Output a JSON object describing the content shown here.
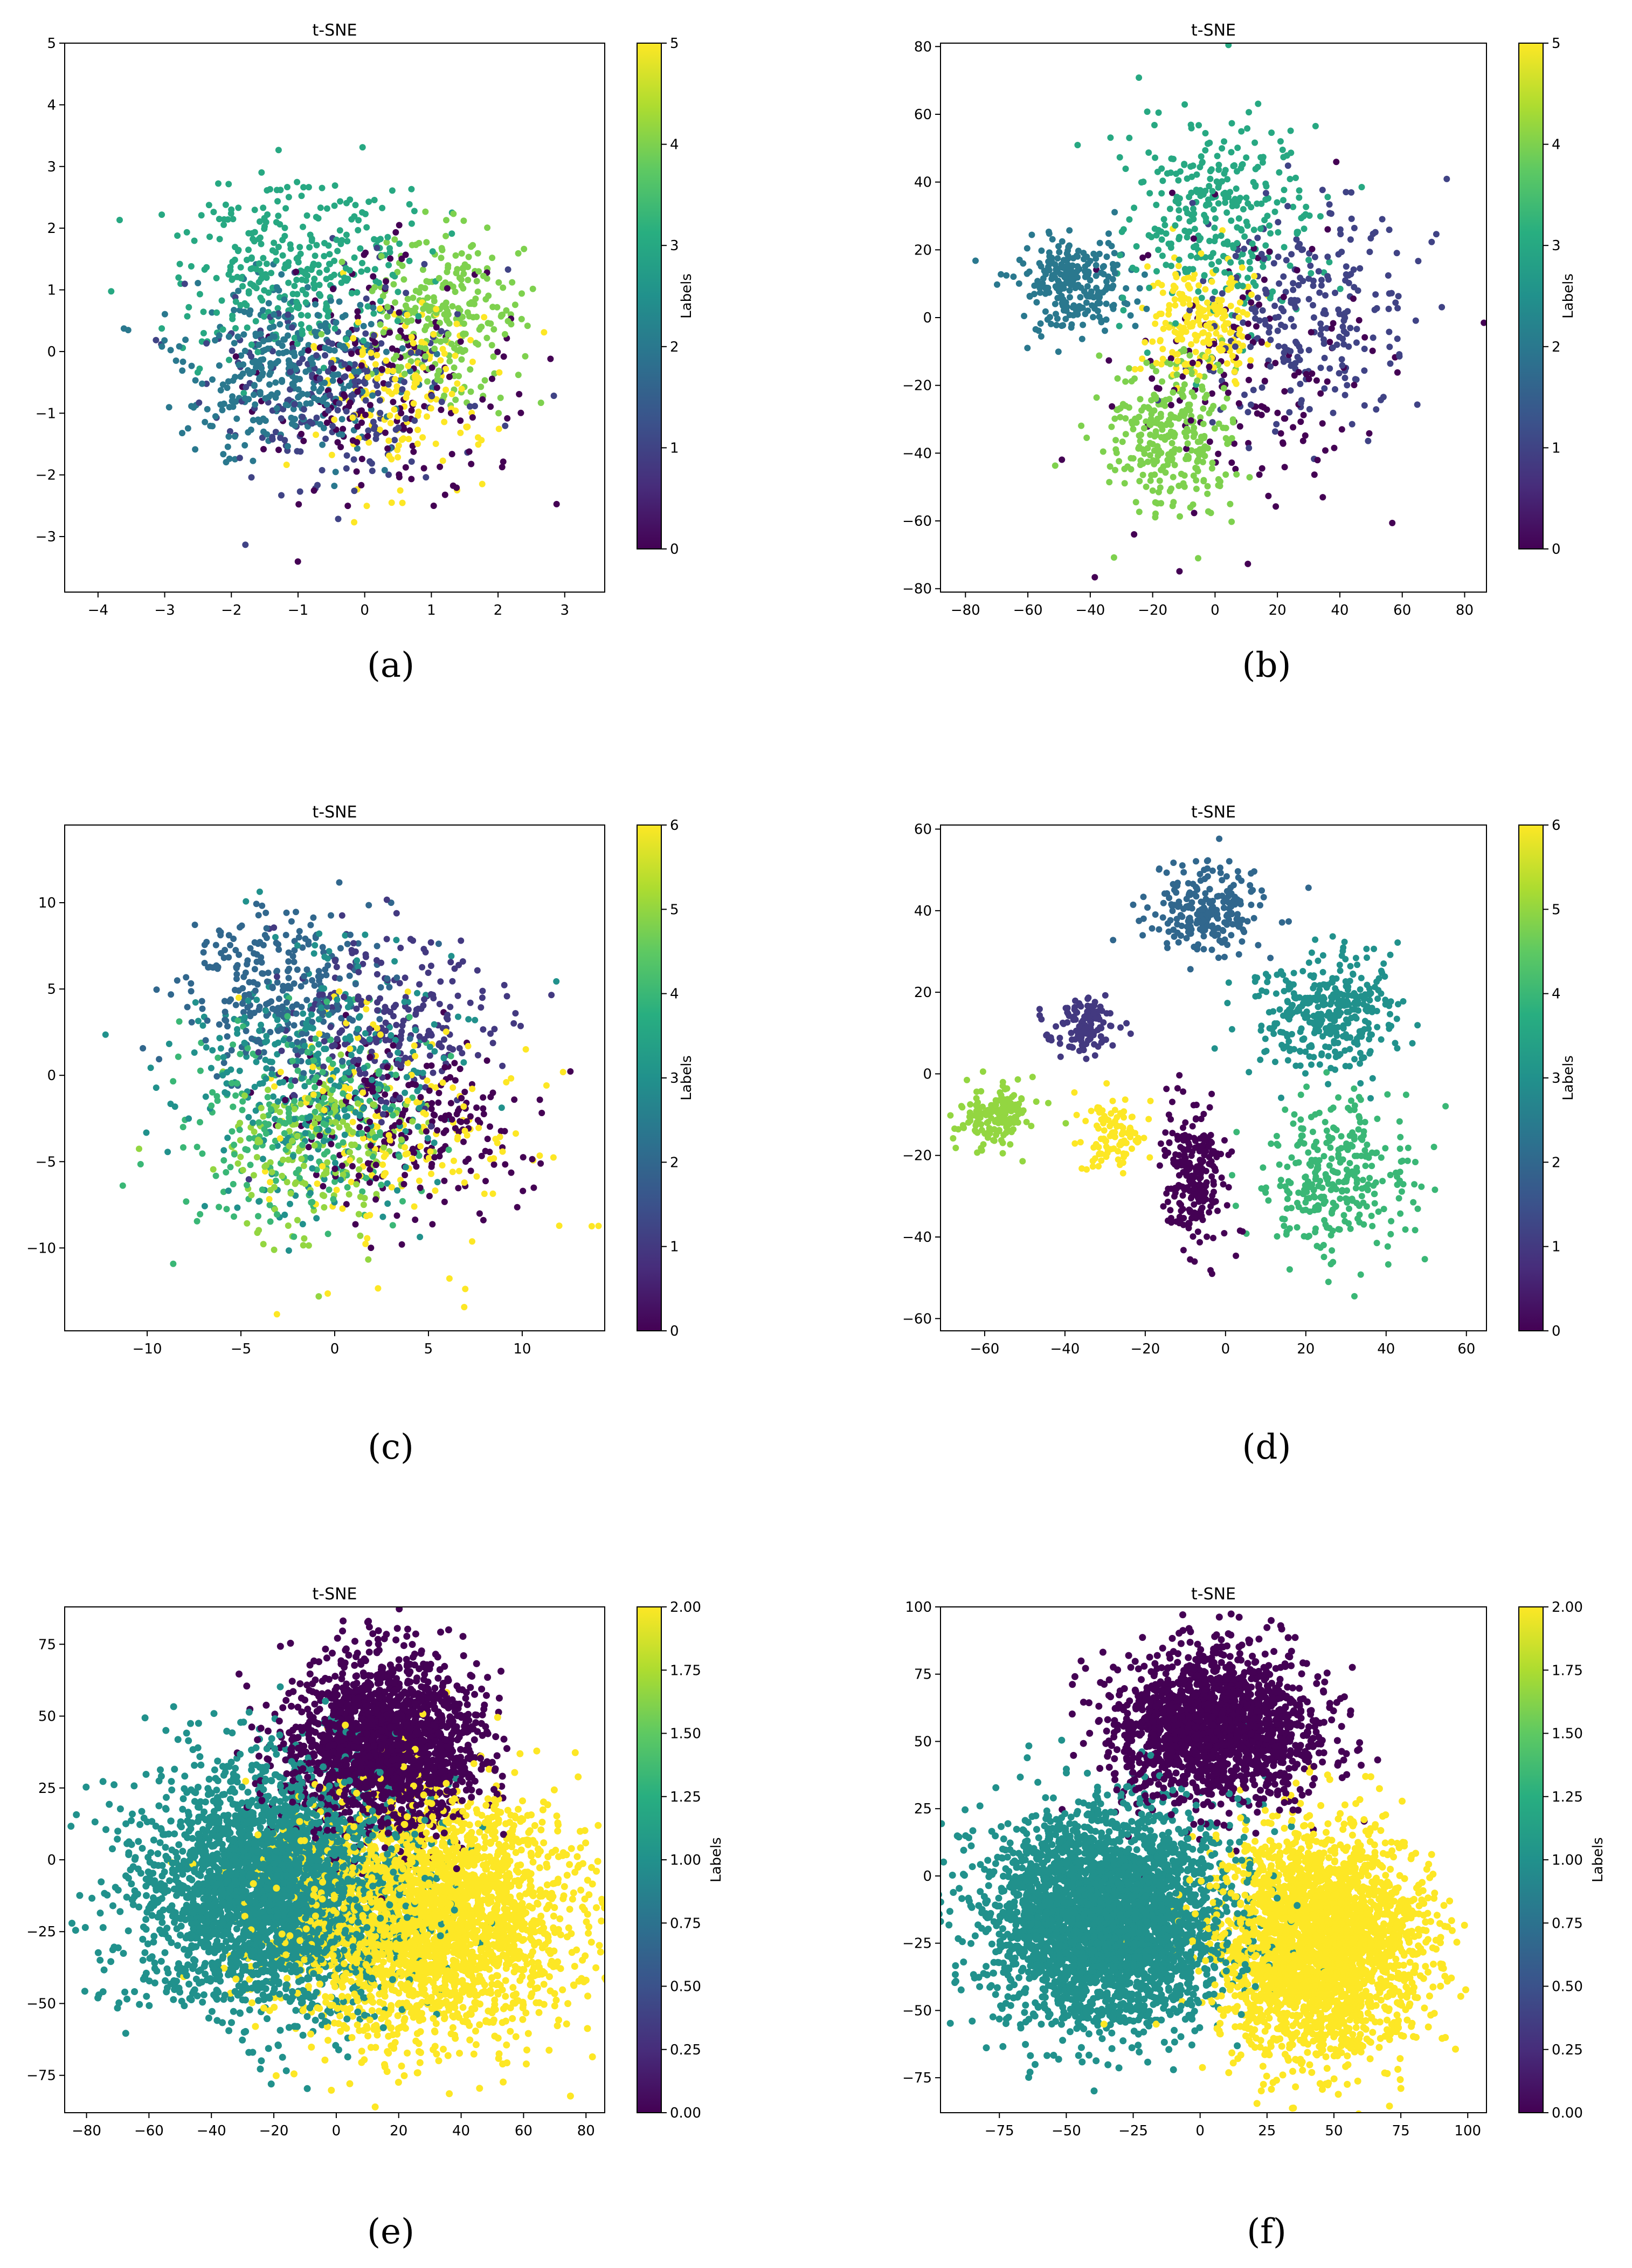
{
  "chart_data": [
    {
      "id": "a",
      "caption": "(a)",
      "type": "scatter",
      "title": "t-SNE",
      "xlabel": "",
      "ylabel": "",
      "xlim": [
        -4.5,
        3.6
      ],
      "ylim": [
        -3.9,
        5.0
      ],
      "xticks": [
        -4,
        -3,
        -2,
        -1,
        0,
        1,
        2,
        3
      ],
      "xtick_labels": [
        "−4",
        "−3",
        "−2",
        "−1",
        "0",
        "1",
        "2",
        "3"
      ],
      "yticks": [
        -3,
        -2,
        -1,
        0,
        1,
        2,
        3,
        4,
        5
      ],
      "ytick_labels": [
        "−3",
        "−2",
        "−1",
        "0",
        "1",
        "2",
        "3",
        "4",
        "5"
      ],
      "colorbar": {
        "label": "Labels",
        "min": 0,
        "max": 5,
        "ticks": [
          0,
          1,
          2,
          3,
          4,
          5
        ],
        "tick_labels": [
          "0",
          "1",
          "2",
          "3",
          "4",
          "5"
        ]
      },
      "points_estimated": 1500,
      "series": [
        {
          "label": 0,
          "center": [
            0.3,
            -0.5
          ],
          "spread": [
            1.3,
            1.3
          ],
          "count": 180
        },
        {
          "label": 1,
          "center": [
            -0.4,
            -0.6
          ],
          "spread": [
            1.2,
            1.1
          ],
          "count": 230
        },
        {
          "label": 2,
          "center": [
            -1.2,
            -0.3
          ],
          "spread": [
            1.1,
            1.0
          ],
          "count": 340
        },
        {
          "label": 3,
          "center": [
            -1.0,
            1.4
          ],
          "spread": [
            1.2,
            0.9
          ],
          "count": 320
        },
        {
          "label": 4,
          "center": [
            1.2,
            0.6
          ],
          "spread": [
            0.8,
            0.9
          ],
          "count": 260
        },
        {
          "label": 5,
          "center": [
            0.6,
            -0.6
          ],
          "spread": [
            0.9,
            1.0
          ],
          "count": 170
        }
      ]
    },
    {
      "id": "b",
      "caption": "(b)",
      "type": "scatter",
      "title": "t-SNE",
      "xlabel": "",
      "ylabel": "",
      "xlim": [
        -88,
        87
      ],
      "ylim": [
        -81,
        81
      ],
      "xticks": [
        -80,
        -60,
        -40,
        -20,
        0,
        20,
        40,
        60,
        80
      ],
      "xtick_labels": [
        "−80",
        "−60",
        "−40",
        "−20",
        "0",
        "20",
        "40",
        "60",
        "80"
      ],
      "yticks": [
        -80,
        -60,
        -40,
        -20,
        0,
        20,
        40,
        60,
        80
      ],
      "ytick_labels": [
        "−80",
        "−60",
        "−40",
        "−20",
        "0",
        "20",
        "40",
        "60",
        "80"
      ],
      "colorbar": {
        "label": "Labels",
        "min": 0,
        "max": 5,
        "ticks": [
          0,
          1,
          2,
          3,
          4,
          5
        ],
        "tick_labels": [
          "0",
          "1",
          "2",
          "3",
          "4",
          "5"
        ]
      },
      "points_estimated": 1500,
      "series": [
        {
          "label": 0,
          "center": [
            10,
            -20
          ],
          "spread": [
            30,
            30
          ],
          "count": 150
        },
        {
          "label": 1,
          "center": [
            30,
            0
          ],
          "spread": [
            22,
            22
          ],
          "count": 260
        },
        {
          "label": 2,
          "center": [
            -45,
            10
          ],
          "spread": [
            12,
            10
          ],
          "count": 250
        },
        {
          "label": 3,
          "center": [
            0,
            30
          ],
          "spread": [
            20,
            20
          ],
          "count": 330
        },
        {
          "label": 4,
          "center": [
            -15,
            -35
          ],
          "spread": [
            14,
            15
          ],
          "count": 300
        },
        {
          "label": 5,
          "center": [
            -5,
            0
          ],
          "spread": [
            12,
            12
          ],
          "count": 210
        }
      ]
    },
    {
      "id": "c",
      "caption": "(c)",
      "type": "scatter",
      "title": "t-SNE",
      "xlabel": "",
      "ylabel": "",
      "xlim": [
        -14.4,
        14.4
      ],
      "ylim": [
        -14.8,
        14.5
      ],
      "xticks": [
        -10,
        -5,
        0,
        5,
        10
      ],
      "xtick_labels": [
        "−10",
        "−5",
        "0",
        "5",
        "10"
      ],
      "yticks": [
        -10,
        -5,
        0,
        5,
        10
      ],
      "ytick_labels": [
        "−10",
        "−5",
        "0",
        "5",
        "10"
      ],
      "colorbar": {
        "label": "Labels",
        "min": 0,
        "max": 6,
        "ticks": [
          0,
          1,
          2,
          3,
          4,
          5,
          6
        ],
        "tick_labels": [
          "0",
          "1",
          "2",
          "3",
          "4",
          "5",
          "6"
        ]
      },
      "points_estimated": 1700,
      "series": [
        {
          "label": 0,
          "center": [
            4,
            -3
          ],
          "spread": [
            4,
            3.5
          ],
          "count": 230
        },
        {
          "label": 1,
          "center": [
            3,
            3
          ],
          "spread": [
            3.5,
            3.5
          ],
          "count": 250
        },
        {
          "label": 2,
          "center": [
            -3,
            5
          ],
          "spread": [
            3.5,
            3.5
          ],
          "count": 280
        },
        {
          "label": 3,
          "center": [
            -1,
            0
          ],
          "spread": [
            5,
            5
          ],
          "count": 330
        },
        {
          "label": 4,
          "center": [
            -2,
            -3
          ],
          "spread": [
            4,
            4
          ],
          "count": 240
        },
        {
          "label": 5,
          "center": [
            -1,
            -4
          ],
          "spread": [
            3.5,
            3.5
          ],
          "count": 200
        },
        {
          "label": 6,
          "center": [
            3,
            -3
          ],
          "spread": [
            5,
            5
          ],
          "count": 170
        }
      ]
    },
    {
      "id": "d",
      "caption": "(d)",
      "type": "scatter",
      "title": "t-SNE",
      "xlabel": "",
      "ylabel": "",
      "xlim": [
        -71,
        65
      ],
      "ylim": [
        -63,
        61
      ],
      "xticks": [
        -60,
        -40,
        -20,
        0,
        20,
        40,
        60
      ],
      "xtick_labels": [
        "−60",
        "−40",
        "−20",
        "0",
        "20",
        "40",
        "60"
      ],
      "yticks": [
        -60,
        -40,
        -20,
        0,
        20,
        40,
        60
      ],
      "ytick_labels": [
        "−60",
        "−40",
        "−20",
        "0",
        "20",
        "40",
        "60"
      ],
      "colorbar": {
        "label": "Labels",
        "min": 0,
        "max": 6,
        "ticks": [
          0,
          1,
          2,
          3,
          4,
          5,
          6
        ],
        "tick_labels": [
          "0",
          "1",
          "2",
          "3",
          "4",
          "5",
          "6"
        ]
      },
      "points_estimated": 1600,
      "series": [
        {
          "label": 0,
          "center": [
            -8,
            -25
          ],
          "spread": [
            5,
            12
          ],
          "count": 240
        },
        {
          "label": 1,
          "center": [
            -35,
            12
          ],
          "spread": [
            5,
            5
          ],
          "count": 120
        },
        {
          "label": 2,
          "center": [
            -5,
            40
          ],
          "spread": [
            10,
            7
          ],
          "count": 230
        },
        {
          "label": 3,
          "center": [
            25,
            15
          ],
          "spread": [
            12,
            10
          ],
          "count": 360
        },
        {
          "label": 4,
          "center": [
            28,
            -25
          ],
          "spread": [
            12,
            12
          ],
          "count": 320
        },
        {
          "label": 5,
          "center": [
            -57,
            -10
          ],
          "spread": [
            6,
            5
          ],
          "count": 160
        },
        {
          "label": 6,
          "center": [
            -28,
            -15
          ],
          "spread": [
            6,
            6
          ],
          "count": 100
        }
      ]
    },
    {
      "id": "e",
      "caption": "(e)",
      "type": "scatter",
      "title": "t-SNE",
      "xlabel": "",
      "ylabel": "",
      "xlim": [
        -87,
        86
      ],
      "ylim": [
        -88,
        88
      ],
      "xticks": [
        -80,
        -60,
        -40,
        -20,
        0,
        20,
        40,
        60,
        80
      ],
      "xtick_labels": [
        "−80",
        "−60",
        "−40",
        "−20",
        "0",
        "20",
        "40",
        "60",
        "80"
      ],
      "yticks": [
        -75,
        -50,
        -25,
        0,
        25,
        50,
        75
      ],
      "ytick_labels": [
        "−75",
        "−50",
        "−25",
        "0",
        "25",
        "50",
        "75"
      ],
      "colorbar": {
        "label": "Labels",
        "min": 0.0,
        "max": 2.0,
        "ticks": [
          0,
          0.25,
          0.5,
          0.75,
          1,
          1.25,
          1.5,
          1.75,
          2
        ],
        "tick_labels": [
          "0.00",
          "0.25",
          "0.50",
          "0.75",
          "1.00",
          "1.25",
          "1.50",
          "1.75",
          "2.00"
        ]
      },
      "points_estimated": 9000,
      "series": [
        {
          "label": 0.0,
          "center": [
            15,
            40
          ],
          "spread": [
            20,
            20
          ],
          "count": 2000
        },
        {
          "label": 1.0,
          "center": [
            -20,
            -10
          ],
          "spread": [
            28,
            28
          ],
          "count": 3200
        },
        {
          "label": 2.0,
          "center": [
            30,
            -20
          ],
          "spread": [
            30,
            28
          ],
          "count": 2800
        }
      ]
    },
    {
      "id": "f",
      "caption": "(f)",
      "type": "scatter",
      "title": "t-SNE",
      "xlabel": "",
      "ylabel": "",
      "xlim": [
        -97,
        107
      ],
      "ylim": [
        -88,
        100
      ],
      "xticks": [
        -75,
        -50,
        -25,
        0,
        25,
        50,
        75,
        100
      ],
      "xtick_labels": [
        "−75",
        "−50",
        "−25",
        "0",
        "25",
        "50",
        "75",
        "100"
      ],
      "yticks": [
        -75,
        -50,
        -25,
        0,
        25,
        50,
        75,
        100
      ],
      "ytick_labels": [
        "−75",
        "−50",
        "−25",
        "0",
        "25",
        "50",
        "75",
        "100"
      ],
      "colorbar": {
        "label": "Labels",
        "min": 0.0,
        "max": 2.0,
        "ticks": [
          0,
          0.25,
          0.5,
          0.75,
          1,
          1.25,
          1.5,
          1.75,
          2
        ],
        "tick_labels": [
          "0.00",
          "0.25",
          "0.50",
          "0.75",
          "1.00",
          "1.25",
          "1.50",
          "1.75",
          "2.00"
        ]
      },
      "points_estimated": 9000,
      "series": [
        {
          "label": 0.0,
          "center": [
            5,
            55
          ],
          "spread": [
            25,
            18
          ],
          "count": 1800
        },
        {
          "label": 1.0,
          "center": [
            -35,
            -15
          ],
          "spread": [
            30,
            26
          ],
          "count": 3400
        },
        {
          "label": 2.0,
          "center": [
            45,
            -25
          ],
          "spread": [
            25,
            28
          ],
          "count": 2800
        }
      ]
    }
  ]
}
